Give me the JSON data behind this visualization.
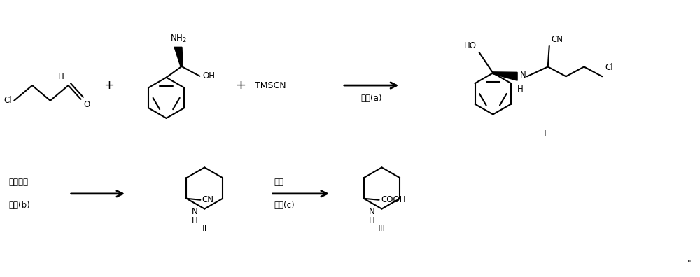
{
  "background_color": "#ffffff",
  "line_color": "#000000",
  "text_color": "#000000",
  "figsize": [
    10.0,
    3.96
  ],
  "dpi": 100,
  "step_a_label": "步骤(a)",
  "step_b_label1": "催化氢化",
  "step_b_label2": "步骤(b)",
  "step_c_label1": "水解",
  "step_c_label2": "步骤(c)",
  "compound_I": "I",
  "compound_II": "II",
  "compound_III": "III"
}
